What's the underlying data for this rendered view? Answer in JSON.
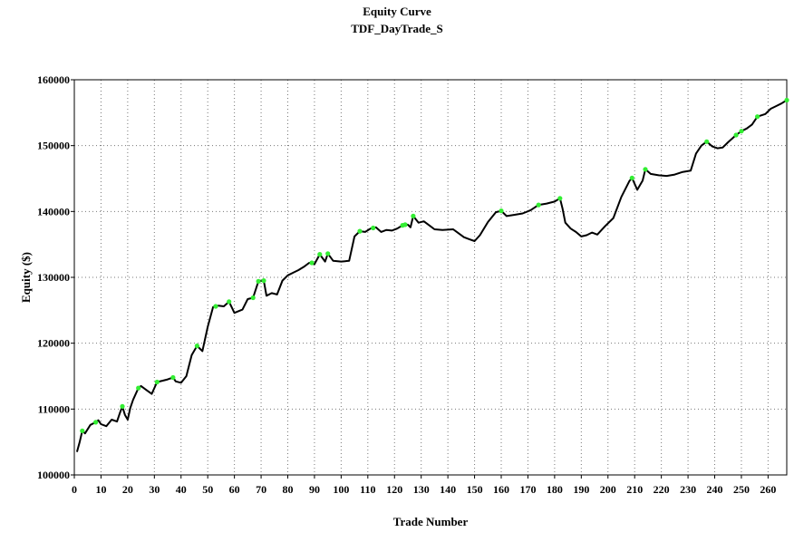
{
  "chart_data": {
    "type": "line",
    "title": "Equity Curve",
    "subtitle": "TDF_DayTrade_S",
    "xlabel": "Trade Number",
    "ylabel": "Equity ($)",
    "xlim": [
      0,
      267
    ],
    "ylim": [
      100000,
      160000
    ],
    "x_ticks": [
      0,
      10,
      20,
      30,
      40,
      50,
      60,
      70,
      80,
      90,
      100,
      110,
      120,
      130,
      140,
      150,
      160,
      170,
      180,
      190,
      200,
      210,
      220,
      230,
      240,
      250,
      260
    ],
    "y_ticks": [
      100000,
      110000,
      120000,
      130000,
      140000,
      150000,
      160000
    ],
    "y_tick_labels": [
      "100000",
      "110000",
      "120000",
      "130000",
      "140000",
      "150000",
      "160000"
    ],
    "grid": true,
    "colors": {
      "line": "#000000",
      "new_high_marker": "#33ee33"
    },
    "series": [
      {
        "values": [
          [
            1,
            103500
          ],
          [
            2,
            105000
          ],
          [
            3,
            106700
          ],
          [
            4,
            106300
          ],
          [
            6,
            107600
          ],
          [
            8,
            108000
          ],
          [
            9,
            108300
          ],
          [
            10,
            107700
          ],
          [
            12,
            107400
          ],
          [
            14,
            108400
          ],
          [
            16,
            108100
          ],
          [
            17,
            109300
          ],
          [
            18,
            110400
          ],
          [
            19,
            109100
          ],
          [
            20,
            108400
          ],
          [
            21,
            110200
          ],
          [
            22,
            111400
          ],
          [
            24,
            113200
          ],
          [
            25,
            113500
          ],
          [
            27,
            112900
          ],
          [
            29,
            112300
          ],
          [
            31,
            114100
          ],
          [
            33,
            114300
          ],
          [
            35,
            114500
          ],
          [
            37,
            114800
          ],
          [
            38,
            114200
          ],
          [
            40,
            114000
          ],
          [
            42,
            115000
          ],
          [
            44,
            118200
          ],
          [
            46,
            119600
          ],
          [
            48,
            118800
          ],
          [
            50,
            122500
          ],
          [
            52,
            125500
          ],
          [
            54,
            125700
          ],
          [
            56,
            125600
          ],
          [
            58,
            126300
          ],
          [
            60,
            124600
          ],
          [
            63,
            125100
          ],
          [
            65,
            126700
          ],
          [
            67,
            126900
          ],
          [
            69,
            129400
          ],
          [
            71,
            129500
          ],
          [
            72,
            127200
          ],
          [
            74,
            127600
          ],
          [
            76,
            127400
          ],
          [
            78,
            129500
          ],
          [
            80,
            130300
          ],
          [
            82,
            130700
          ],
          [
            84,
            131100
          ],
          [
            86,
            131600
          ],
          [
            88,
            132200
          ],
          [
            90,
            132000
          ],
          [
            92,
            133500
          ],
          [
            94,
            132400
          ],
          [
            95,
            133600
          ],
          [
            97,
            132500
          ],
          [
            100,
            132400
          ],
          [
            103,
            132500
          ],
          [
            105,
            136200
          ],
          [
            107,
            137000
          ],
          [
            109,
            136900
          ],
          [
            111,
            137400
          ],
          [
            113,
            137600
          ],
          [
            115,
            136900
          ],
          [
            117,
            137200
          ],
          [
            119,
            137100
          ],
          [
            121,
            137400
          ],
          [
            123,
            137900
          ],
          [
            125,
            138000
          ],
          [
            126,
            137600
          ],
          [
            127,
            139300
          ],
          [
            129,
            138300
          ],
          [
            131,
            138500
          ],
          [
            133,
            137900
          ],
          [
            135,
            137300
          ],
          [
            138,
            137200
          ],
          [
            142,
            137300
          ],
          [
            146,
            136100
          ],
          [
            148,
            135800
          ],
          [
            150,
            135500
          ],
          [
            152,
            136400
          ],
          [
            155,
            138400
          ],
          [
            158,
            139900
          ],
          [
            160,
            140100
          ],
          [
            162,
            139300
          ],
          [
            165,
            139500
          ],
          [
            168,
            139700
          ],
          [
            171,
            140200
          ],
          [
            174,
            141000
          ],
          [
            177,
            141200
          ],
          [
            180,
            141500
          ],
          [
            182,
            142000
          ],
          [
            183,
            140400
          ],
          [
            184,
            138300
          ],
          [
            186,
            137400
          ],
          [
            188,
            136900
          ],
          [
            190,
            136200
          ],
          [
            192,
            136400
          ],
          [
            194,
            136800
          ],
          [
            196,
            136500
          ],
          [
            199,
            137800
          ],
          [
            202,
            139000
          ],
          [
            205,
            142200
          ],
          [
            208,
            144600
          ],
          [
            209,
            145100
          ],
          [
            211,
            143300
          ],
          [
            213,
            144700
          ],
          [
            214,
            146400
          ],
          [
            216,
            145700
          ],
          [
            219,
            145500
          ],
          [
            222,
            145400
          ],
          [
            225,
            145600
          ],
          [
            228,
            146000
          ],
          [
            231,
            146200
          ],
          [
            233,
            148800
          ],
          [
            235,
            150000
          ],
          [
            237,
            150600
          ],
          [
            239,
            149900
          ],
          [
            241,
            149600
          ],
          [
            243,
            149700
          ],
          [
            245,
            150500
          ],
          [
            248,
            151600
          ],
          [
            250,
            152200
          ],
          [
            252,
            152600
          ],
          [
            254,
            153200
          ],
          [
            256,
            154400
          ],
          [
            259,
            154800
          ],
          [
            261,
            155600
          ],
          [
            263,
            156000
          ],
          [
            265,
            156400
          ],
          [
            267,
            156900
          ]
        ]
      }
    ],
    "new_high_points": [
      [
        3,
        106700
      ],
      [
        8,
        108000
      ],
      [
        18,
        110400
      ],
      [
        24,
        113200
      ],
      [
        31,
        114100
      ],
      [
        37,
        114800
      ],
      [
        46,
        119600
      ],
      [
        53,
        125600
      ],
      [
        58,
        126300
      ],
      [
        67,
        126900
      ],
      [
        69,
        129400
      ],
      [
        71,
        129500
      ],
      [
        89,
        132200
      ],
      [
        92,
        133500
      ],
      [
        95,
        133600
      ],
      [
        107,
        137000
      ],
      [
        112,
        137500
      ],
      [
        123,
        137900
      ],
      [
        124,
        138000
      ],
      [
        127,
        139300
      ],
      [
        160,
        140100
      ],
      [
        174,
        141000
      ],
      [
        182,
        142000
      ],
      [
        209,
        145100
      ],
      [
        214,
        146400
      ],
      [
        237,
        150600
      ],
      [
        248,
        151600
      ],
      [
        250,
        152200
      ],
      [
        256,
        154400
      ],
      [
        267,
        156900
      ]
    ]
  }
}
